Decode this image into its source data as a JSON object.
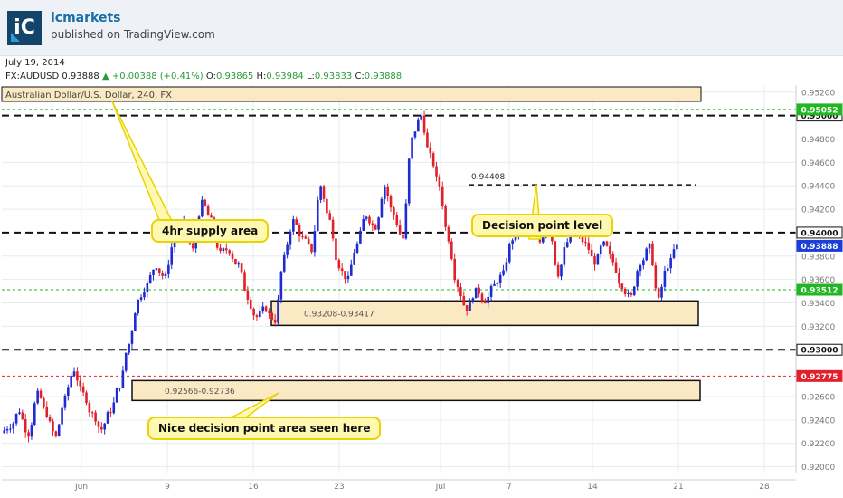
{
  "header": {
    "logo_text": "iC",
    "author": "icmarkets",
    "published": "published on TradingView.com"
  },
  "date": "July 19, 2014",
  "ticker": {
    "symbol": "FX:AUDUSD",
    "last": "0.93888",
    "change": "+0.00388 (+0.41%)",
    "o_label": "O:",
    "o": "0.93865",
    "h_label": "H:",
    "h": "0.93984",
    "l_label": "L:",
    "l": "0.93833",
    "c_label": "C:",
    "c": "0.93888"
  },
  "chart_data": {
    "type": "candlestick",
    "title": "Australian Dollar/U.S. Dollar, 240, FX",
    "ylim": [
      0.9195,
      0.9526
    ],
    "y_ticks": [
      "0.95200",
      "0.94800",
      "0.94600",
      "0.94400",
      "0.94200",
      "0.93800",
      "0.93600",
      "0.93400",
      "0.93200",
      "0.92600",
      "0.92400",
      "0.92200",
      "0.92000"
    ],
    "x_ticks": [
      "Jun",
      "9",
      "16",
      "23",
      "Jul",
      "7",
      "14",
      "21",
      "28"
    ],
    "horizontal_levels": [
      {
        "label": "0.95000",
        "value": 0.95,
        "style": "dashed-black"
      },
      {
        "label": "0.95052",
        "value": 0.95052,
        "style": "dotted-green"
      },
      {
        "label": "0.94000",
        "value": 0.94,
        "style": "dashed-black"
      },
      {
        "label": "0.93888",
        "value": 0.93888,
        "style": "price"
      },
      {
        "label": "0.93512",
        "value": 0.93512,
        "style": "dotted-green"
      },
      {
        "label": "0.93000",
        "value": 0.93,
        "style": "dashed-black"
      },
      {
        "label": "0.92775",
        "value": 0.92775,
        "style": "dotted-red"
      }
    ],
    "level_label_0_94408": "0.94408",
    "zones": [
      {
        "label": "0.93208-0.93417",
        "low": 0.93208,
        "high": 0.93417
      },
      {
        "label": "0.92566-0.92736",
        "low": 0.92566,
        "high": 0.92736
      }
    ],
    "annotations": [
      "4hr supply area",
      "Decision point level",
      "Nice decision point area seen here"
    ],
    "candle_path_closes": [
      0.9235,
      0.9248,
      0.9228,
      0.9262,
      0.9245,
      0.9225,
      0.9258,
      0.9283,
      0.9262,
      0.9245,
      0.9232,
      0.9248,
      0.927,
      0.9305,
      0.9342,
      0.9356,
      0.9372,
      0.9362,
      0.9395,
      0.9408,
      0.9385,
      0.9425,
      0.941,
      0.9382,
      0.9385,
      0.9372,
      0.9345,
      0.9328,
      0.9335,
      0.9325,
      0.9378,
      0.941,
      0.9395,
      0.9385,
      0.944,
      0.941,
      0.9372,
      0.936,
      0.939,
      0.9415,
      0.9405,
      0.944,
      0.9415,
      0.9395,
      0.948,
      0.95,
      0.9465,
      0.944,
      0.9395,
      0.9355,
      0.9335,
      0.935,
      0.9342,
      0.9355,
      0.9365,
      0.9395,
      0.9402,
      0.9408,
      0.9392,
      0.941,
      0.9365,
      0.9392,
      0.94,
      0.939,
      0.9375,
      0.939,
      0.9375,
      0.9355,
      0.9345,
      0.9375,
      0.9388,
      0.9342,
      0.9372,
      0.9388
    ]
  },
  "colors": {
    "up": "#1f2bd1",
    "down": "#e0202a",
    "zone_fill": "#fbe9c3",
    "grid": "#e6ecf2",
    "level_green": "#22b722",
    "level_red": "#e0202a"
  }
}
